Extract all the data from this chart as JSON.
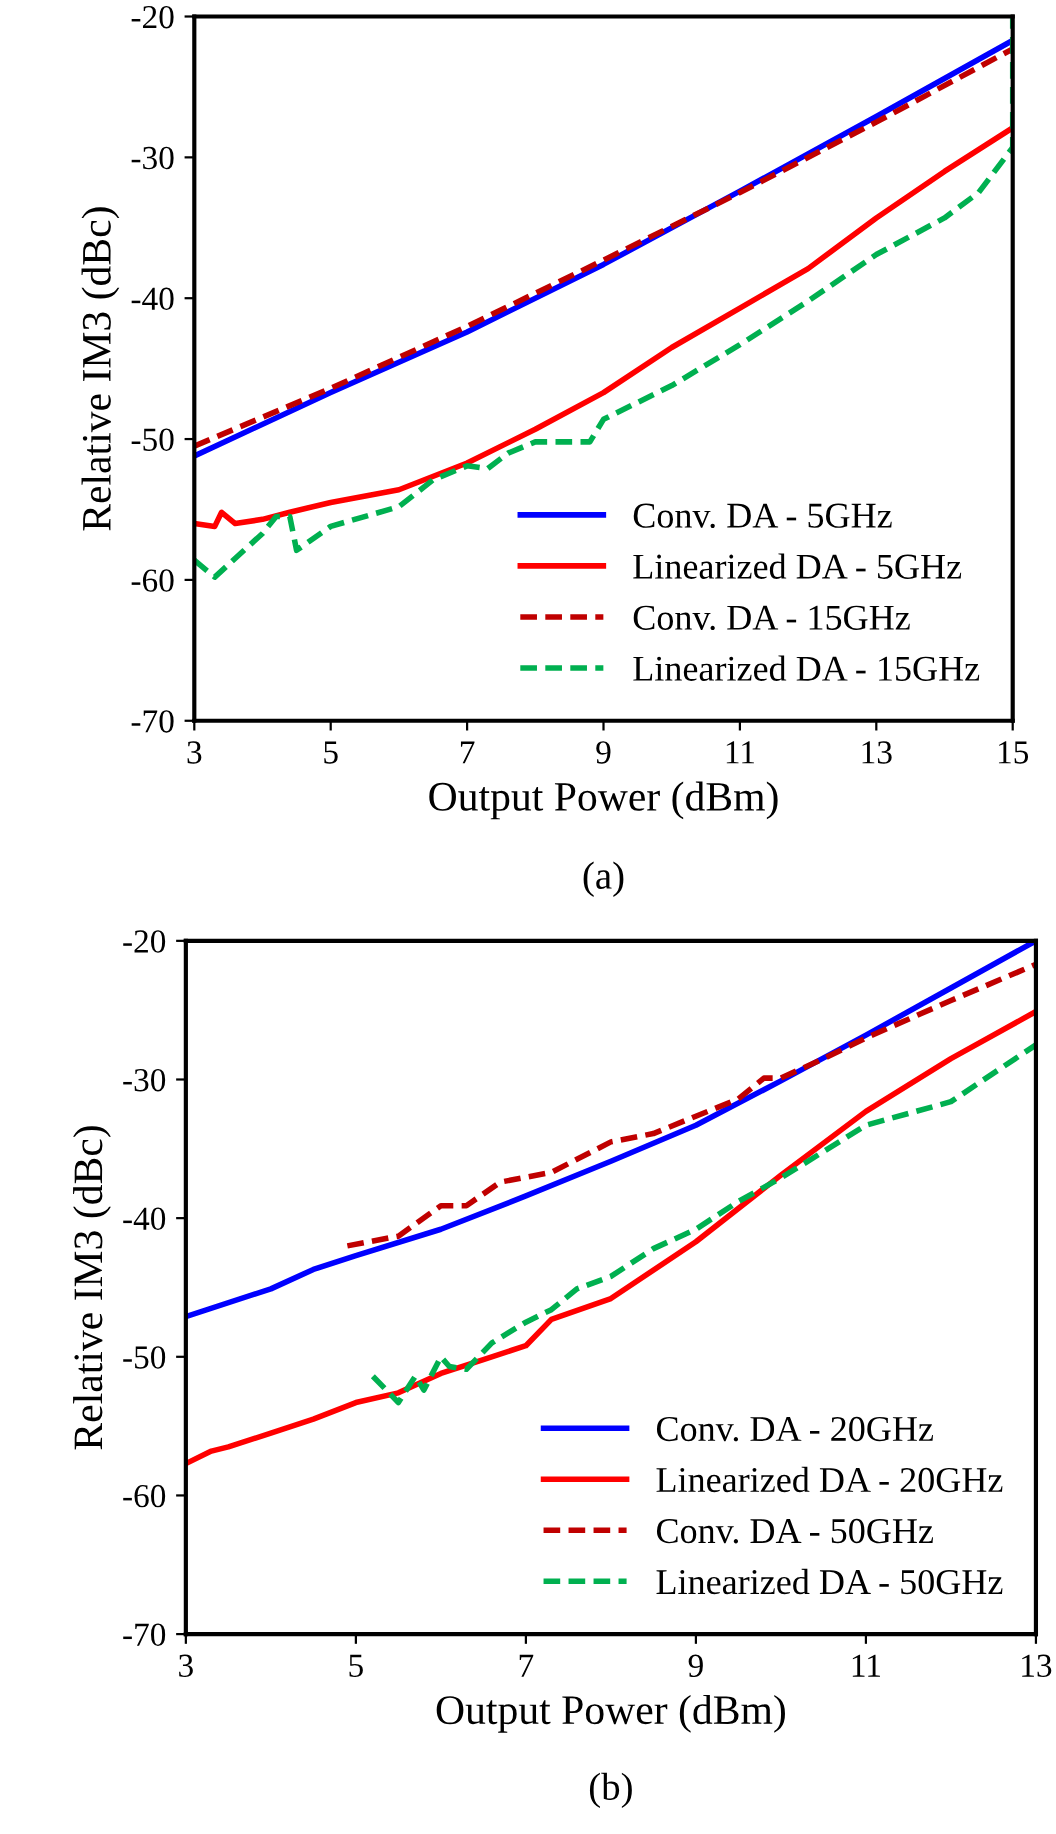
{
  "chart_data": [
    {
      "type": "line",
      "xlabel": "Output Power (dBm)",
      "ylabel": "Relative IM3 (dBc)",
      "annotations": [
        "(a)"
      ],
      "xlim": [
        3,
        15
      ],
      "ylim": [
        -70,
        -20
      ],
      "xticks": [
        3,
        5,
        7,
        9,
        11,
        13,
        15
      ],
      "yticks": [
        -70,
        -60,
        -50,
        -40,
        -30,
        -20
      ],
      "grid": false,
      "legend": "bottom right",
      "marker": "none",
      "series": [
        {
          "name": "Conv. DA - 5GHz",
          "color": "#0000ff",
          "line_style": "solid",
          "x": [
            3,
            5,
            7,
            9,
            11,
            13,
            15
          ],
          "values": [
            -51.2,
            -46.7,
            -42.4,
            -37.6,
            -32.4,
            -27.1,
            -21.7
          ]
        },
        {
          "name": "Linearized DA - 5GHz",
          "color": "#ff0000",
          "line_style": "solid",
          "x": [
            3,
            3.3,
            3.4,
            3.6,
            4,
            4.4,
            5,
            6,
            7,
            8,
            9,
            10,
            11,
            12,
            13,
            14,
            15
          ],
          "values": [
            -56,
            -56.2,
            -55.2,
            -56,
            -55.7,
            -55.2,
            -54.5,
            -53.6,
            -51.7,
            -49.3,
            -46.7,
            -43.5,
            -40.7,
            -37.9,
            -34.3,
            -31,
            -27.9
          ]
        },
        {
          "name": "Conv. DA - 15GHz",
          "color": "#c00000",
          "line_style": "dashed",
          "x": [
            3,
            5,
            7,
            9,
            11,
            13,
            15
          ],
          "values": [
            -50.5,
            -46.4,
            -42,
            -37.3,
            -32.5,
            -27.5,
            -22.3
          ]
        },
        {
          "name": "Linearized DA - 15GHz",
          "color": "#00b050",
          "line_style": "dashed",
          "x": [
            3,
            3.3,
            4,
            4.2,
            4.4,
            4.5,
            5,
            6,
            6.5,
            7,
            7.3,
            7.6,
            8,
            8.8,
            9,
            10,
            11,
            12,
            13,
            14,
            14.5,
            15,
            15
          ],
          "values": [
            -58.6,
            -59.8,
            -56.7,
            -55.5,
            -55.5,
            -57.9,
            -56.2,
            -54.8,
            -52.9,
            -51.9,
            -52.1,
            -51,
            -50.2,
            -50.2,
            -48.6,
            -46.2,
            -43.3,
            -40.2,
            -36.9,
            -34.3,
            -32.5,
            -29.3,
            -20
          ]
        }
      ]
    },
    {
      "type": "line",
      "xlabel": "Output Power (dBm)",
      "ylabel": "Relative IM3 (dBc)",
      "annotations": [
        "(b)"
      ],
      "xlim": [
        3,
        13
      ],
      "ylim": [
        -70,
        -20
      ],
      "xticks": [
        3,
        5,
        7,
        9,
        11,
        13
      ],
      "yticks": [
        -70,
        -60,
        -50,
        -40,
        -30,
        -20
      ],
      "grid": false,
      "legend": "bottom right",
      "marker": "none",
      "series": [
        {
          "name": "Conv. DA - 20GHz",
          "color": "#0000ff",
          "line_style": "solid",
          "x": [
            3,
            4,
            4.5,
            5,
            6,
            7,
            8,
            9,
            10,
            11,
            12,
            13
          ],
          "values": [
            -47.1,
            -45.1,
            -43.7,
            -42.7,
            -40.8,
            -38.4,
            -35.9,
            -33.3,
            -30.1,
            -26.8,
            -23.4,
            -20
          ]
        },
        {
          "name": "Linearized DA - 20GHz",
          "color": "#ff0000",
          "line_style": "solid",
          "x": [
            3,
            3.3,
            3.5,
            4,
            4.5,
            5,
            5.5,
            6,
            6.5,
            7,
            7.3,
            8,
            9,
            10,
            11,
            12,
            13
          ],
          "values": [
            -57.7,
            -56.8,
            -56.5,
            -55.5,
            -54.5,
            -53.3,
            -52.6,
            -51.2,
            -50.2,
            -49.2,
            -47.3,
            -45.8,
            -41.7,
            -36.9,
            -32.3,
            -28.5,
            -25.1
          ]
        },
        {
          "name": "Conv. DA - 50GHz",
          "color": "#c00000",
          "line_style": "dashed",
          "x": [
            4.9,
            5.5,
            6,
            6.3,
            6.7,
            7.3,
            8,
            8.5,
            9.5,
            9.8,
            10,
            10.5,
            11,
            12,
            13
          ],
          "values": [
            -42,
            -41.3,
            -39.1,
            -39.1,
            -37.4,
            -36.7,
            -34.5,
            -33.9,
            -31.4,
            -29.9,
            -29.9,
            -28.5,
            -27,
            -24.3,
            -21.7
          ]
        },
        {
          "name": "Linearized DA - 50GHz",
          "color": "#00b050",
          "line_style": "dashed",
          "x": [
            5.2,
            5.5,
            5.7,
            5.8,
            6,
            6.1,
            6.3,
            6.6,
            7,
            7.3,
            7.6,
            8,
            8.5,
            9,
            9.5,
            10,
            10.5,
            11,
            12,
            13
          ],
          "values": [
            -51.4,
            -53.3,
            -51.4,
            -52.4,
            -50,
            -50.7,
            -50.9,
            -49,
            -47.5,
            -46.6,
            -45.1,
            -44.2,
            -42.2,
            -40.8,
            -38.8,
            -37.1,
            -35.2,
            -33.3,
            -31.6,
            -27.5
          ]
        }
      ]
    }
  ]
}
